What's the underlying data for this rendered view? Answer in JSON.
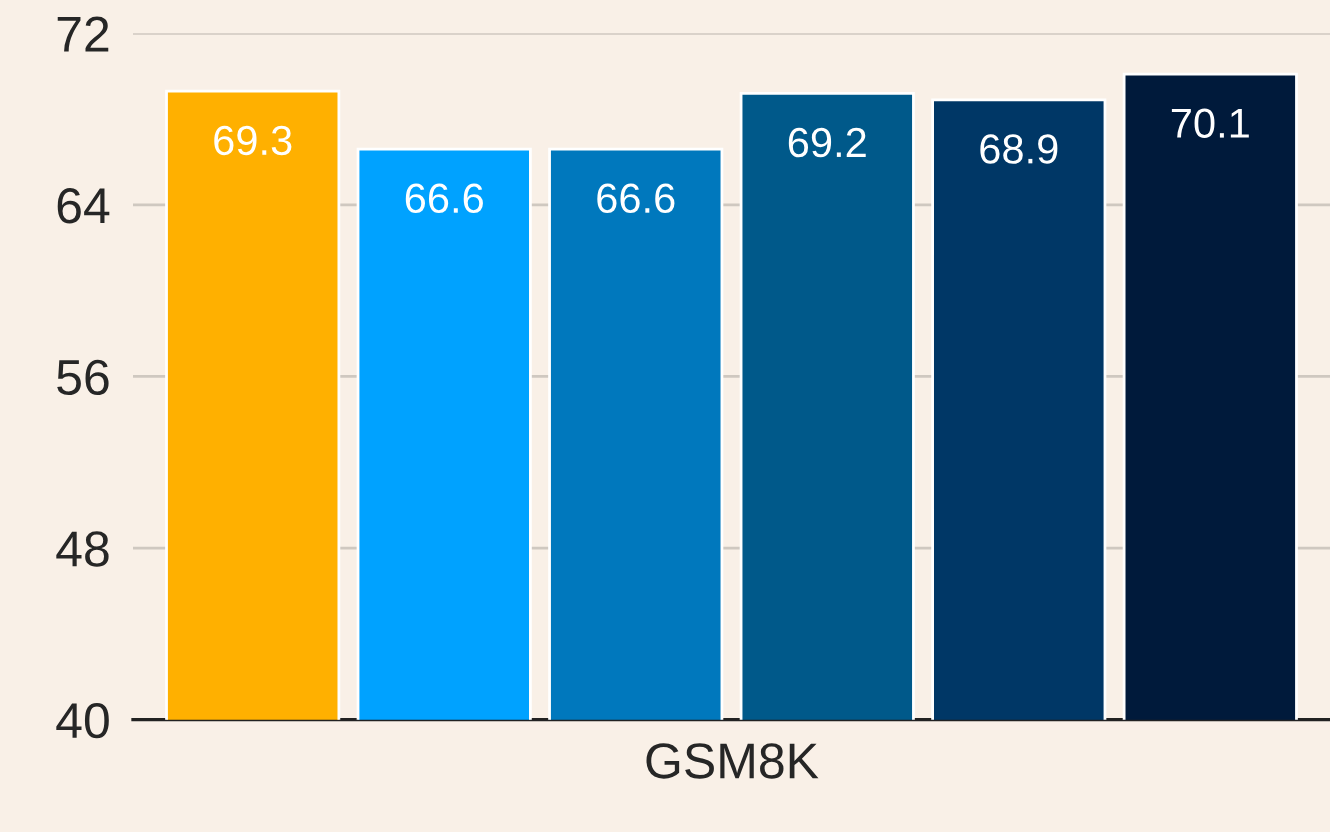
{
  "chart_data": {
    "type": "bar",
    "categories": [
      "GSM8K"
    ],
    "series": [
      {
        "color": "#ffb000",
        "values": [
          69.3
        ]
      },
      {
        "color": "#00a2ff",
        "values": [
          66.6
        ]
      },
      {
        "color": "#0078bd",
        "values": [
          66.6
        ]
      },
      {
        "color": "#00598a",
        "values": [
          69.2
        ]
      },
      {
        "color": "#003766",
        "values": [
          68.9
        ]
      },
      {
        "color": "#001a3b",
        "values": [
          70.1
        ]
      }
    ],
    "ylim": [
      40,
      72
    ],
    "yticks": [
      40,
      48,
      56,
      64,
      72
    ],
    "grid": "y",
    "data_labels": true
  }
}
